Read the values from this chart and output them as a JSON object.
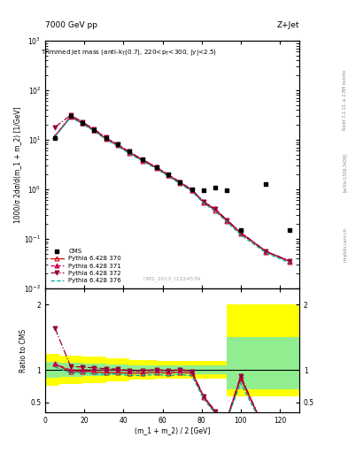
{
  "title_left": "7000 GeV pp",
  "title_right": "Z+Jet",
  "annotation": "Trimmed jet mass (anti-k_{T}(0.7), 220<p_{T}<300, |y|<2.5)",
  "watermark": "CMS_2013_I1224539",
  "rivet_text": "Rivet 3.1.10, ≥ 2.8M events",
  "arxiv_text": "[arXiv:1306.3436]",
  "mcplots_text": "mcplots.cern.ch",
  "xlabel": "(m_1 + m_2) / 2 [GeV]",
  "ylabel_main": "1000/σ 2dσ/d(m_1 + m_2) [1/GeV]",
  "ylabel_ratio": "Ratio to CMS",
  "xlim": [
    0,
    130
  ],
  "ylim_main": [
    0.01,
    1000
  ],
  "ylim_ratio": [
    0.35,
    2.25
  ],
  "cms_x": [
    5,
    13,
    19,
    25,
    31,
    37,
    43,
    50,
    57,
    63,
    69,
    75,
    81,
    87,
    93,
    100,
    113,
    125
  ],
  "cms_y": [
    11.0,
    30.0,
    22.0,
    16.0,
    11.0,
    8.0,
    5.8,
    4.0,
    2.8,
    2.0,
    1.4,
    1.0,
    0.95,
    1.1,
    0.95,
    0.15,
    1.3,
    0.15
  ],
  "py370_x": [
    5,
    13,
    19,
    25,
    31,
    37,
    43,
    50,
    57,
    63,
    69,
    75,
    81,
    87,
    93,
    100,
    113,
    125
  ],
  "py370_y": [
    12.0,
    29.0,
    21.5,
    15.5,
    10.5,
    7.7,
    5.5,
    3.8,
    2.7,
    1.9,
    1.35,
    0.95,
    0.55,
    0.38,
    0.23,
    0.13,
    0.055,
    0.035
  ],
  "py371_x": [
    5,
    13,
    19,
    25,
    31,
    37,
    43,
    50,
    57,
    63,
    69,
    75,
    81,
    87,
    93,
    100,
    113,
    125
  ],
  "py371_y": [
    12.0,
    30.0,
    22.0,
    16.0,
    11.0,
    8.0,
    5.7,
    3.9,
    2.8,
    1.95,
    1.4,
    0.97,
    0.57,
    0.4,
    0.24,
    0.135,
    0.056,
    0.036
  ],
  "py372_x": [
    5,
    13,
    19,
    25,
    31,
    37,
    43,
    50,
    57,
    63,
    69,
    75,
    81,
    87,
    93,
    100,
    113,
    125
  ],
  "py372_y": [
    18.0,
    31.5,
    23.0,
    16.5,
    11.2,
    8.1,
    5.75,
    3.95,
    2.82,
    1.97,
    1.41,
    0.98,
    0.57,
    0.4,
    0.24,
    0.135,
    0.056,
    0.036
  ],
  "py376_x": [
    5,
    13,
    19,
    25,
    31,
    37,
    43,
    50,
    57,
    63,
    69,
    75,
    81,
    87,
    93,
    100,
    113,
    125
  ],
  "py376_y": [
    11.5,
    28.5,
    21.0,
    15.0,
    10.2,
    7.5,
    5.3,
    3.65,
    2.6,
    1.82,
    1.3,
    0.91,
    0.53,
    0.36,
    0.22,
    0.12,
    0.052,
    0.033
  ],
  "ratio370_x": [
    5,
    13,
    19,
    25,
    31,
    37,
    43,
    50,
    57,
    63,
    69,
    75,
    81,
    87,
    93,
    100,
    113,
    125
  ],
  "ratio370_y": [
    1.09,
    0.97,
    0.98,
    0.97,
    0.955,
    0.96,
    0.948,
    0.95,
    0.964,
    0.95,
    0.964,
    0.95,
    0.58,
    0.345,
    0.242,
    0.867,
    0.042,
    0.233
  ],
  "ratio371_x": [
    5,
    13,
    19,
    25,
    31,
    37,
    43,
    50,
    57,
    63,
    69,
    75,
    81,
    87,
    93,
    100,
    113,
    125
  ],
  "ratio371_y": [
    1.09,
    1.0,
    1.0,
    1.0,
    1.0,
    1.0,
    0.983,
    0.975,
    1.0,
    0.975,
    1.0,
    0.97,
    0.6,
    0.364,
    0.253,
    0.9,
    0.043,
    0.24
  ],
  "ratio372_x": [
    5,
    13,
    19,
    25,
    31,
    37,
    43,
    50,
    57,
    63,
    69,
    75,
    81,
    87,
    93,
    100,
    113,
    125
  ],
  "ratio372_y": [
    1.64,
    1.05,
    1.045,
    1.03,
    1.018,
    1.013,
    0.991,
    0.988,
    1.007,
    0.985,
    1.007,
    0.98,
    0.6,
    0.364,
    0.253,
    0.9,
    0.043,
    0.24
  ],
  "ratio376_x": [
    5,
    13,
    19,
    25,
    31,
    37,
    43,
    50,
    57,
    63,
    69,
    75,
    81,
    87,
    93,
    100,
    113,
    125
  ],
  "ratio376_y": [
    1.045,
    0.95,
    0.955,
    0.938,
    0.927,
    0.938,
    0.914,
    0.913,
    0.929,
    0.91,
    0.929,
    0.91,
    0.558,
    0.327,
    0.232,
    0.8,
    0.04,
    0.22
  ],
  "band_x_steps": [
    0,
    7,
    19,
    31,
    43,
    57,
    69,
    81,
    93,
    106,
    125,
    130
  ],
  "band_yellow_lo": [
    0.75,
    0.78,
    0.8,
    0.82,
    0.85,
    0.87,
    0.87,
    0.87,
    0.6,
    0.6,
    0.6,
    0.6
  ],
  "band_yellow_hi": [
    1.25,
    1.22,
    1.2,
    1.18,
    1.15,
    1.13,
    1.13,
    1.13,
    2.0,
    2.0,
    2.0,
    2.0
  ],
  "band_green_lo": [
    0.875,
    0.895,
    0.905,
    0.915,
    0.93,
    0.935,
    0.935,
    0.935,
    0.7,
    0.7,
    0.7,
    0.7
  ],
  "band_green_hi": [
    1.125,
    1.105,
    1.095,
    1.085,
    1.07,
    1.065,
    1.065,
    1.065,
    1.5,
    1.5,
    1.5,
    1.5
  ],
  "color_370": "#cc0000",
  "color_371": "#cc0055",
  "color_372": "#990033",
  "color_376": "#00aaaa",
  "color_cms": "black"
}
